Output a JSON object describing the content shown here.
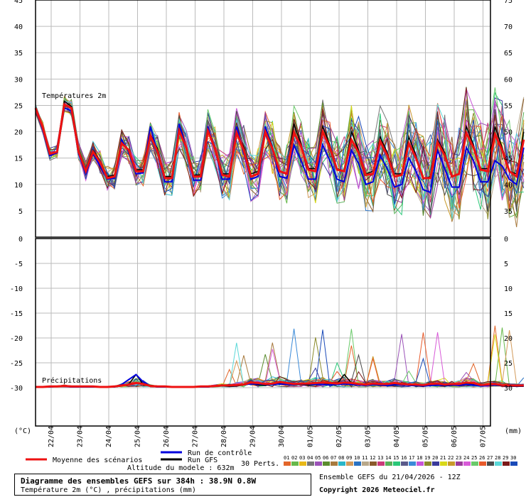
{
  "labels": {
    "panel_top": "Températures 2m",
    "panel_bottom": "Précipitations",
    "unit_left": "(°C)",
    "unit_right": "(mm)",
    "legend_mean": "Moyenne des scénarios",
    "legend_control": "Run de contrôle",
    "legend_gfs": "Run GFS",
    "perts_label": "30 Perts.",
    "altitude": "Altitude du modele : 632m",
    "title": "Diagramme des ensembles GEFS sur 384h : 38.9N 0.8W",
    "subtitle": "Température 2m (°C) , précipitations (mm)",
    "run_info": "Ensemble GEFS du 21/04/2026 - 12Z",
    "copyright": "Copyright 2026 Meteociel.fr"
  },
  "colors": {
    "mean": "#ee1111",
    "control": "#0000dd",
    "gfs": "#000000",
    "pert_swatches": [
      "#e3662a",
      "#67b84a",
      "#e8b818",
      "#777777",
      "#9b52b8",
      "#5a8c2e",
      "#a87a3e",
      "#2ab6c8",
      "#d29a5a",
      "#2a72c2",
      "#b8a88a",
      "#8a5a2a",
      "#ca3a7a",
      "#58b058",
      "#2ac878",
      "#5a5a8a",
      "#3a8ad8",
      "#c856d8",
      "#8a8a2a",
      "#3a3a9a",
      "#d8d818",
      "#c89a2a",
      "#9a3a9a",
      "#d85ad8",
      "#6aca6a",
      "#e85a2a",
      "#4a4a4a",
      "#5ad8d8",
      "#7a1a1a",
      "#1a4ab8"
    ]
  },
  "chart_data": [
    {
      "type": "line",
      "title": "Températures 2m",
      "ylabel": "(°C)",
      "ylim": [
        0,
        45
      ],
      "yticks": [
        5,
        10,
        15,
        20,
        25,
        30,
        35,
        40,
        45
      ],
      "y2lim": [
        30,
        75
      ],
      "y2ticks": [
        35,
        40,
        45,
        50,
        55,
        60,
        65,
        70,
        75
      ],
      "x_start_hour": 0,
      "x_step_hours": 6,
      "x_tick_labels": [
        "22/04",
        "23/04",
        "24/04",
        "25/04",
        "26/04",
        "27/04",
        "28/04",
        "29/04",
        "30/04",
        "01/05",
        "02/05",
        "03/05",
        "04/05",
        "05/05",
        "06/05",
        "07/05"
      ],
      "series": [
        {
          "name": "Moyenne des scénarios",
          "values": [
            24.5,
            20.8,
            15.8,
            16.2,
            25.2,
            24.5,
            16.2,
            12.5,
            16.2,
            14.2,
            11.2,
            11.5,
            17.8,
            16.5,
            12.5,
            12.5,
            19.2,
            16.2,
            11.2,
            11.2,
            20.2,
            17.0,
            11.5,
            11.5,
            20.2,
            16.8,
            11.8,
            11.5,
            19.8,
            16.5,
            11.5,
            12.0,
            20.0,
            16.8,
            12.5,
            12.0,
            19.8,
            17.2,
            12.8,
            12.5,
            20.0,
            17.0,
            12.8,
            12.5,
            18.5,
            16.0,
            11.8,
            12.0,
            18.2,
            15.5,
            11.5,
            11.8,
            17.8,
            15.0,
            11.2,
            11.2,
            18.0,
            15.5,
            11.5,
            12.0,
            19.8,
            17.0,
            12.8,
            12.5,
            19.5,
            16.5,
            12.5,
            11.5,
            18.5
          ]
        },
        {
          "name": "Run de contrôle",
          "values": [
            24.3,
            20.5,
            15.5,
            16.0,
            24.5,
            24.0,
            15.8,
            12.0,
            15.8,
            13.5,
            11.0,
            11.2,
            18.5,
            16.0,
            12.0,
            12.2,
            21.0,
            16.0,
            10.5,
            10.5,
            21.5,
            17.0,
            10.8,
            10.8,
            21.0,
            16.5,
            11.0,
            11.0,
            21.0,
            16.0,
            11.0,
            11.5,
            21.0,
            16.5,
            11.5,
            11.2,
            17.5,
            14.5,
            11.0,
            11.0,
            17.5,
            14.5,
            11.0,
            10.5,
            16.5,
            14.0,
            10.0,
            10.5,
            15.5,
            13.0,
            9.5,
            10.0,
            15.0,
            12.5,
            9.0,
            8.5,
            16.5,
            13.0,
            9.5,
            9.5,
            17.0,
            14.5,
            10.5,
            10.5,
            14.5,
            13.5,
            11.0,
            10.0,
            17.0
          ]
        },
        {
          "name": "Run GFS",
          "values": [
            24.6,
            21.0,
            16.0,
            16.0,
            25.8,
            24.8,
            16.5,
            12.8,
            16.5,
            14.5,
            11.5,
            11.8,
            18.0,
            16.5,
            12.8,
            12.8,
            19.5,
            16.8,
            11.5,
            11.5,
            20.5,
            17.2,
            11.8,
            11.8,
            20.5,
            17.0,
            12.0,
            12.0,
            20.0,
            17.0,
            12.0,
            12.5,
            21.0,
            17.0,
            12.5,
            12.0,
            21.5,
            17.5,
            13.0,
            13.0,
            21.0,
            17.5,
            13.0,
            12.5,
            20.0,
            16.5,
            12.0,
            12.5,
            19.0,
            16.0,
            12.0,
            12.0,
            19.0,
            15.5,
            11.0,
            11.5,
            18.5,
            16.0,
            11.5,
            12.0,
            21.0,
            17.5,
            13.0,
            13.0,
            21.0,
            17.0,
            12.5,
            12.0,
            20.0
          ]
        }
      ]
    },
    {
      "type": "line",
      "title": "Précipitations",
      "ylabel": "(°C)",
      "ylim": [
        -30,
        0
      ],
      "yticks": [
        0,
        -5,
        -10,
        -15,
        -20,
        -25,
        -30
      ],
      "y2label": "(mm)",
      "y2lim": [
        0,
        30
      ],
      "y2ticks": [
        0,
        5,
        10,
        15,
        20,
        25,
        30
      ],
      "x_start_hour": 0,
      "x_step_hours": 6,
      "x_tick_labels": [
        "22/04",
        "23/04",
        "24/04",
        "25/04",
        "26/04",
        "27/04",
        "28/04",
        "29/04",
        "30/04",
        "01/05",
        "02/05",
        "03/05",
        "04/05",
        "05/05",
        "06/05",
        "07/05"
      ],
      "series": [
        {
          "name": "Moyenne des scénarios",
          "values_mm": [
            0,
            0,
            0.1,
            0.1,
            0.2,
            0.1,
            0.1,
            0.1,
            0.1,
            0,
            0,
            0.1,
            0.3,
            0.5,
            0.8,
            0.6,
            0.2,
            0.1,
            0.1,
            0,
            0,
            0,
            0,
            0.1,
            0.1,
            0.2,
            0.3,
            0.3,
            0.4,
            0.5,
            0.9,
            0.8,
            0.6,
            0.7,
            1.0,
            0.8,
            0.6,
            0.7,
            0.7,
            0.8,
            0.9,
            0.8,
            0.7,
            0.9,
            0.8,
            0.6,
            0.5,
            0.7,
            0.6,
            0.6,
            0.8,
            0.6,
            0.5,
            0.5,
            0.4,
            0.6,
            0.7,
            0.5,
            0.6,
            0.6,
            0.9,
            0.8,
            0.4,
            0.5,
            0.6,
            0.4,
            0.3,
            0.3,
            0.3
          ]
        },
        {
          "name": "Run de contrôle",
          "values_mm": [
            0,
            0,
            0,
            0.1,
            0.1,
            0,
            0,
            0,
            0,
            0,
            0,
            0,
            0.5,
            1.5,
            2.5,
            1.0,
            0.2,
            0,
            0,
            0,
            0,
            0,
            0,
            0,
            0,
            0.2,
            0.3,
            0.4,
            0.3,
            0.5,
            0.6,
            0.6,
            0.5,
            0.5,
            0.6,
            0.5,
            0.4,
            0.6,
            0.6,
            0.5,
            0.5,
            0.4,
            0.5,
            0.6,
            0.5,
            0.4,
            0.3,
            0.5,
            0.4,
            0.3,
            0.5,
            0.4,
            0.3,
            0.3,
            0.2,
            0.3,
            0.4,
            0.3,
            0.4,
            0.3,
            0.5,
            0.4,
            0.2,
            0.3,
            0.4,
            0.3,
            0.2,
            0.2,
            0.2
          ]
        },
        {
          "name": "Run GFS",
          "values_mm": [
            0,
            0,
            0,
            0.1,
            0.1,
            0,
            0,
            0,
            0,
            0,
            0,
            0,
            0.2,
            0.6,
            2.5,
            0.5,
            0.1,
            0,
            0,
            0,
            0,
            0,
            0,
            0,
            0,
            0.1,
            0.2,
            0.1,
            0.2,
            0.4,
            0.6,
            0.4,
            0.3,
            0.6,
            0.8,
            0.5,
            0.4,
            0.5,
            0.4,
            0.6,
            0.5,
            0.7,
            0.6,
            2.5,
            0.8,
            0.5,
            0.3,
            0.5,
            0.3,
            0.3,
            0.4,
            0.5,
            0.3,
            0.2,
            0.1,
            0.3,
            0.4,
            0.2,
            0.3,
            0.4,
            0.6,
            0.5,
            0.2,
            0.3,
            0.4,
            0.2,
            0.1,
            0.1,
            0.1
          ]
        }
      ]
    }
  ]
}
